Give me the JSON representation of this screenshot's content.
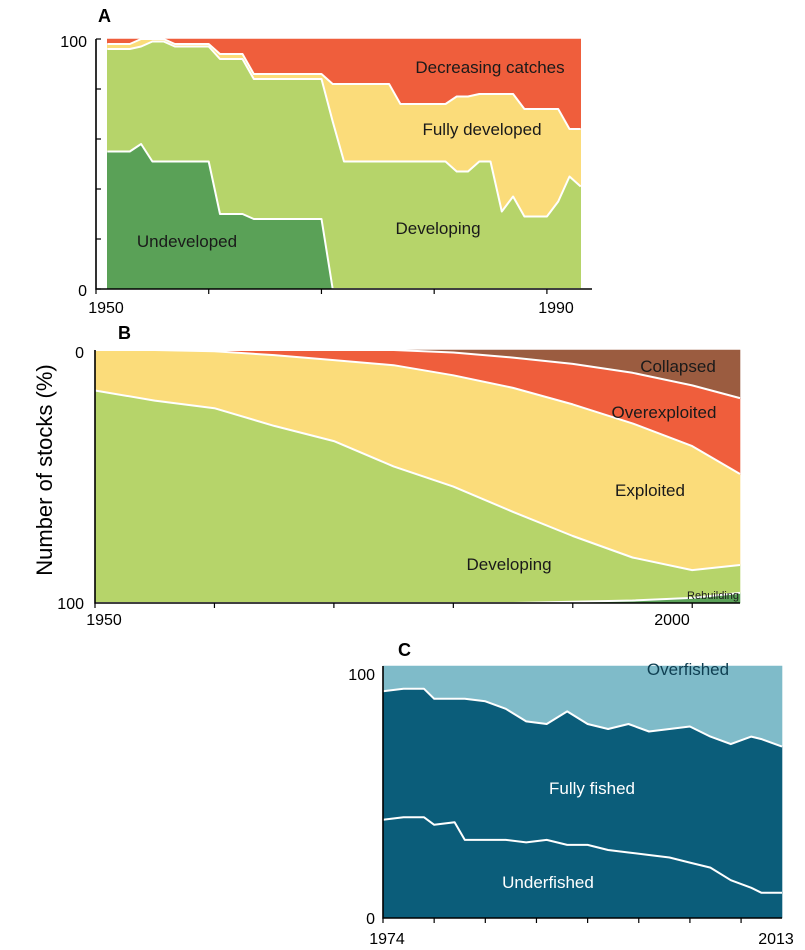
{
  "ylabel": "Number of stocks (%)",
  "chart_data": [
    {
      "panel": "A",
      "type": "area",
      "stacked": true,
      "xlim": [
        1950,
        1994
      ],
      "ylim": [
        0,
        100
      ],
      "x_tick_labels": [
        "1950",
        "1990"
      ],
      "y_tick_labels": [
        "0",
        "100"
      ],
      "x": [
        1951,
        1953,
        1954,
        1955,
        1956,
        1957,
        1960,
        1961,
        1963,
        1964,
        1966,
        1967,
        1969,
        1970,
        1971,
        1972,
        1973,
        1974,
        1975,
        1976,
        1977,
        1978,
        1979,
        1980,
        1981,
        1982,
        1983,
        1984,
        1985,
        1986,
        1987,
        1988,
        1989,
        1990,
        1991,
        1992,
        1993
      ],
      "series": [
        {
          "name": "Undeveloped",
          "color": "#5aa157",
          "values": [
            55,
            55,
            58,
            51,
            51,
            51,
            51,
            30,
            30,
            28,
            28,
            28,
            28,
            28,
            0,
            0,
            0,
            0,
            0,
            0,
            0,
            0,
            0,
            0,
            0,
            0,
            0,
            0,
            0,
            0,
            0,
            0,
            0,
            0,
            0,
            0,
            0
          ]
        },
        {
          "name": "Developing",
          "color": "#b6d46a",
          "values": [
            41,
            41,
            39,
            48,
            48,
            46,
            46,
            62,
            62,
            56,
            56,
            56,
            56,
            56,
            67,
            51,
            51,
            51,
            51,
            51,
            51,
            51,
            51,
            51,
            51,
            47,
            47,
            51,
            51,
            31,
            37,
            29,
            29,
            29,
            35,
            45,
            41
          ]
        },
        {
          "name": "Fully developed",
          "color": "#fbdc7a",
          "values": [
            2,
            2,
            3,
            1,
            1,
            1,
            1,
            2,
            2,
            2,
            2,
            2,
            2,
            2,
            15,
            31,
            31,
            31,
            31,
            31,
            23,
            23,
            23,
            23,
            23,
            30,
            30,
            27,
            27,
            47,
            41,
            43,
            43,
            43,
            37,
            19,
            23
          ]
        },
        {
          "name": "Decreasing catches",
          "color": "#ef5e3c",
          "values": [
            2,
            2,
            0,
            0,
            0,
            2,
            2,
            6,
            6,
            14,
            14,
            14,
            14,
            14,
            18,
            18,
            18,
            18,
            18,
            18,
            26,
            26,
            26,
            26,
            26,
            23,
            23,
            22,
            22,
            22,
            22,
            28,
            28,
            28,
            28,
            36,
            36
          ]
        }
      ]
    },
    {
      "panel": "B",
      "type": "area",
      "stacked": true,
      "xlim": [
        1950,
        2004
      ],
      "ylim_inverted": [
        0,
        100
      ],
      "x_tick_labels": [
        "1950",
        "2000"
      ],
      "y_tick_labels": [
        "0",
        "100"
      ],
      "x": [
        1950,
        1955,
        1960,
        1965,
        1970,
        1975,
        1980,
        1985,
        1990,
        1995,
        2000,
        2004
      ],
      "series": [
        {
          "name": "Rebuilding",
          "color": "#5aa157",
          "values": [
            0,
            0,
            0,
            0,
            0,
            0,
            0,
            0,
            0.5,
            1,
            2,
            4
          ]
        },
        {
          "name": "Developing",
          "color": "#b6d46a",
          "values": [
            84,
            80,
            77,
            70,
            64,
            54,
            46,
            36,
            26,
            17,
            11,
            11
          ]
        },
        {
          "name": "Exploited",
          "color": "#fbdc7a",
          "values": [
            16,
            20,
            22.5,
            28,
            32,
            40,
            44,
            49,
            52,
            53,
            49,
            36
          ]
        },
        {
          "name": "Overexploited",
          "color": "#ef5e3c",
          "values": [
            0,
            0,
            0.5,
            2,
            4,
            6,
            9,
            12,
            16,
            20,
            24,
            30
          ]
        },
        {
          "name": "Collapsed",
          "color": "#9b5c40",
          "values": [
            0,
            0,
            0,
            0,
            0,
            0,
            1,
            3,
            5.5,
            9,
            14,
            19
          ]
        }
      ]
    },
    {
      "panel": "C",
      "type": "area",
      "stacked": true,
      "xlim": [
        1974,
        2013
      ],
      "ylim": [
        0,
        100
      ],
      "x_tick_labels": [
        "1974",
        "2013"
      ],
      "y_tick_labels": [
        "0",
        "100"
      ],
      "x": [
        1974,
        1976,
        1978,
        1979,
        1981,
        1982,
        1984,
        1986,
        1988,
        1990,
        1992,
        1994,
        1996,
        1998,
        2000,
        2002,
        2004,
        2006,
        2008,
        2010,
        2011,
        2013
      ],
      "series": [
        {
          "name": "Underfished",
          "color": "#0b5d7a",
          "values": [
            39,
            40,
            40,
            37,
            38,
            31,
            31,
            31,
            30,
            31,
            29,
            29,
            27,
            26,
            25,
            24,
            22,
            20,
            15,
            12,
            10,
            10
          ]
        },
        {
          "name": "Fully fished",
          "color": "#0b5d7a",
          "values": [
            51,
            51,
            51,
            50,
            49,
            56,
            55,
            52,
            48,
            46,
            53,
            48,
            48,
            51,
            49,
            51,
            54,
            52,
            54,
            60,
            61,
            58
          ]
        },
        {
          "name": "Overfished",
          "color": "#7fbbc9",
          "values": [
            10,
            9,
            9,
            13,
            13,
            13,
            14,
            17,
            22,
            23,
            18,
            23,
            25,
            23,
            26,
            25,
            24,
            28,
            31,
            28,
            29,
            32
          ]
        }
      ]
    }
  ]
}
